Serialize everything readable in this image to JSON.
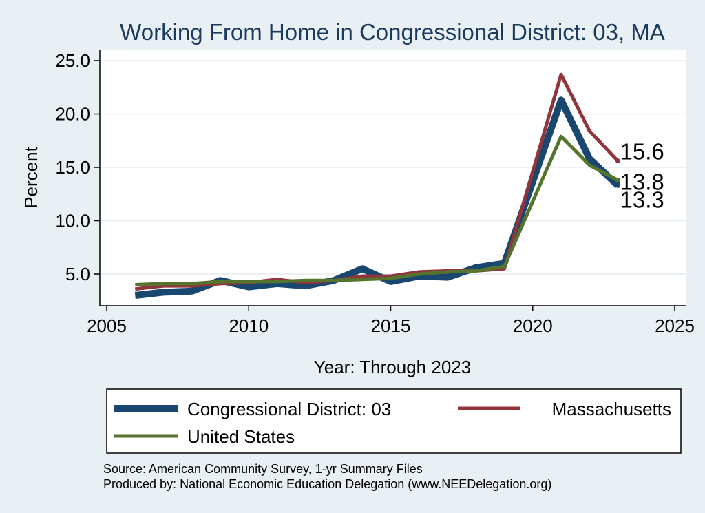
{
  "chart_data": {
    "type": "line",
    "title": "Working From Home in Congressional District: 03, MA",
    "xlabel": "Year: Through 2023",
    "ylabel": "Percent",
    "xlim": [
      2005,
      2025
    ],
    "ylim": [
      2.0,
      26.0
    ],
    "xticks": [
      2005,
      2010,
      2015,
      2020,
      2025
    ],
    "yticks": [
      5.0,
      10.0,
      15.0,
      20.0,
      25.0
    ],
    "xtick_labels": [
      "2005",
      "2010",
      "2015",
      "2020",
      "2025"
    ],
    "ytick_labels": [
      "5.0",
      "10.0",
      "15.0",
      "20.0",
      "25.0"
    ],
    "grid": "horizontal",
    "legend_position": "bottom",
    "series": [
      {
        "name": "Congressional District: 03",
        "color": "#1a476f",
        "x": [
          2006,
          2007,
          2008,
          2009,
          2010,
          2011,
          2012,
          2013,
          2014,
          2015,
          2016,
          2017,
          2018,
          2019,
          2021,
          2022,
          2023
        ],
        "y": [
          3.0,
          3.3,
          3.4,
          4.4,
          3.8,
          4.1,
          3.9,
          4.4,
          5.5,
          4.3,
          4.8,
          4.7,
          5.6,
          6.0,
          21.3,
          15.8,
          13.3
        ],
        "end_label": "13.3"
      },
      {
        "name": "Massachusetts",
        "color": "#90353b",
        "x": [
          2006,
          2007,
          2008,
          2009,
          2010,
          2011,
          2012,
          2013,
          2014,
          2015,
          2016,
          2017,
          2018,
          2019,
          2021,
          2022,
          2023
        ],
        "y": [
          3.6,
          3.9,
          3.9,
          4.1,
          4.2,
          4.5,
          4.2,
          4.4,
          4.8,
          4.8,
          5.2,
          5.3,
          5.3,
          5.5,
          23.7,
          18.4,
          15.6
        ],
        "end_label": "15.6"
      },
      {
        "name": "United States",
        "color": "#55752f",
        "x": [
          2006,
          2007,
          2008,
          2009,
          2010,
          2011,
          2012,
          2013,
          2014,
          2015,
          2016,
          2017,
          2018,
          2019,
          2021,
          2022,
          2023
        ],
        "y": [
          4.0,
          4.1,
          4.1,
          4.3,
          4.3,
          4.3,
          4.4,
          4.4,
          4.5,
          4.6,
          5.0,
          5.2,
          5.3,
          5.7,
          17.9,
          15.2,
          13.8
        ],
        "end_label": "13.8"
      }
    ],
    "notes": [
      "Source: American Community Survey, 1-yr Summary Files",
      "Produced by: National Economic Education Delegation (www.NEEDelegation.org)"
    ]
  }
}
